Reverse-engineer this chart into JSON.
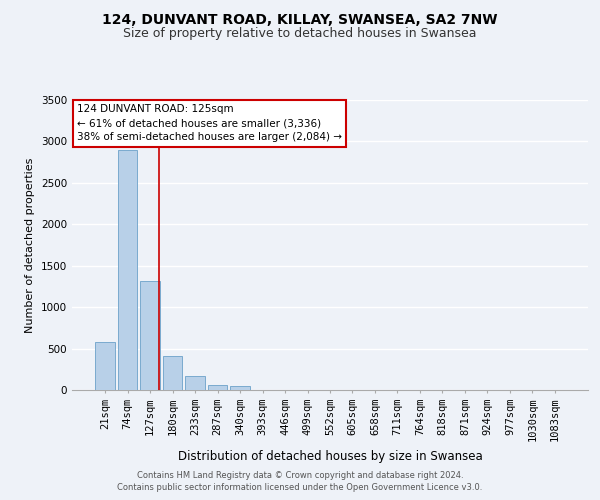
{
  "title": "124, DUNVANT ROAD, KILLAY, SWANSEA, SA2 7NW",
  "subtitle": "Size of property relative to detached houses in Swansea",
  "xlabel": "Distribution of detached houses by size in Swansea",
  "ylabel": "Number of detached properties",
  "footer_line1": "Contains HM Land Registry data © Crown copyright and database right 2024.",
  "footer_line2": "Contains public sector information licensed under the Open Government Licence v3.0.",
  "bin_labels": [
    "21sqm",
    "74sqm",
    "127sqm",
    "180sqm",
    "233sqm",
    "287sqm",
    "340sqm",
    "393sqm",
    "446sqm",
    "499sqm",
    "552sqm",
    "605sqm",
    "658sqm",
    "711sqm",
    "764sqm",
    "818sqm",
    "871sqm",
    "924sqm",
    "977sqm",
    "1030sqm",
    "1083sqm"
  ],
  "bar_values": [
    580,
    2900,
    1310,
    415,
    170,
    65,
    50,
    0,
    0,
    0,
    0,
    0,
    0,
    0,
    0,
    0,
    0,
    0,
    0,
    0,
    0
  ],
  "bar_color": "#b8d0e8",
  "bar_edge_color": "#7aaace",
  "vline_x": 2.4,
  "vline_color": "#cc0000",
  "annotation_text": "124 DUNVANT ROAD: 125sqm\n← 61% of detached houses are smaller (3,336)\n38% of semi-detached houses are larger (2,084) →",
  "annotation_box_color": "#ffffff",
  "annotation_box_edge_color": "#cc0000",
  "ylim": [
    0,
    3500
  ],
  "yticks": [
    0,
    500,
    1000,
    1500,
    2000,
    2500,
    3000,
    3500
  ],
  "background_color": "#eef2f8",
  "grid_color": "#ffffff",
  "title_fontsize": 10,
  "subtitle_fontsize": 9,
  "xlabel_fontsize": 8.5,
  "ylabel_fontsize": 8,
  "tick_fontsize": 7.5,
  "ann_fontsize": 7.5,
  "footer_fontsize": 6
}
